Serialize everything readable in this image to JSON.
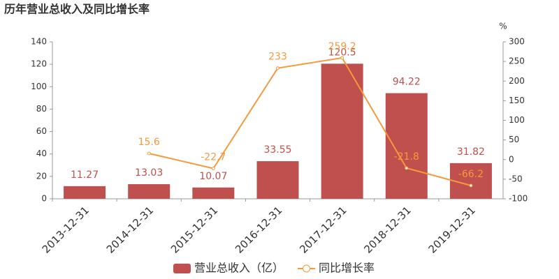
{
  "chart_data": {
    "type": "bar",
    "title": "历年营业总收入及同比增长率",
    "y2_unit": "%",
    "categories": [
      "2013-12-31",
      "2014-12-31",
      "2015-12-31",
      "2016-12-31",
      "2017-12-31",
      "2018-12-31",
      "2019-12-31"
    ],
    "series": [
      {
        "name": "营业总收入（亿）",
        "type": "bar",
        "color": "#c0504d",
        "values": [
          11.27,
          13.03,
          10.07,
          33.55,
          120.5,
          94.22,
          31.82
        ]
      },
      {
        "name": "同比增长率",
        "type": "line",
        "axis": "y2",
        "color": "#f5993c",
        "values": [
          null,
          15.6,
          -22.7,
          233,
          259.2,
          -21.8,
          -66.2
        ]
      }
    ],
    "ylim": [
      0,
      140
    ],
    "yticks": [
      0,
      20,
      40,
      60,
      80,
      100,
      120,
      140
    ],
    "y2lim": [
      -100,
      300
    ],
    "y2ticks": [
      -100,
      -50,
      0,
      50,
      100,
      150,
      200,
      250,
      300
    ],
    "grid": false,
    "legend": "bottom"
  }
}
